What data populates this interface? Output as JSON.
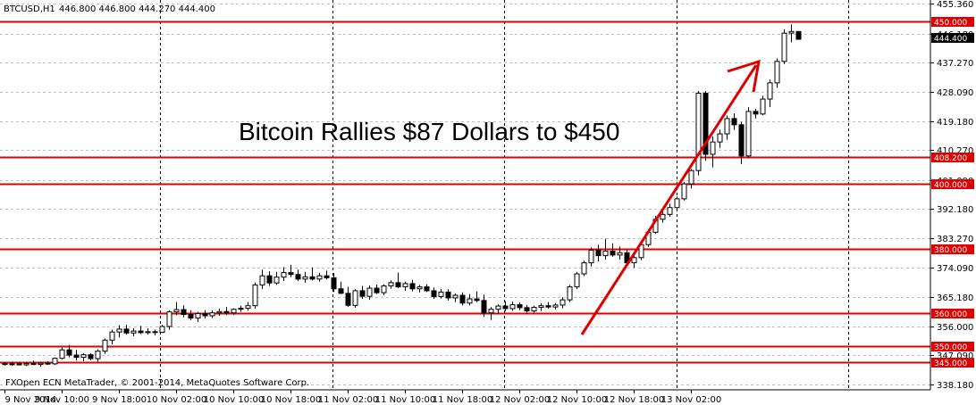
{
  "header": {
    "symbol": "BTCUSD,H1",
    "ohlc": "446.800 446.800 444.270 444.400"
  },
  "headline": "Bitcoin Rallies $87 Dollars to $450",
  "footer": "FXOpen ECN MetaTrader, © 2001-2014, MetaQuotes Software Corp.",
  "colors": {
    "level_line": "#e00000",
    "arrow": "#e00000",
    "candle_up": "#ffffff",
    "candle_down": "#000000",
    "current_price_tag": "#000000"
  },
  "chart_data": {
    "type": "candlestick",
    "y_ticks": [
      "455.360",
      "446.180",
      "437.270",
      "428.090",
      "419.180",
      "410.270",
      "401.090",
      "392.180",
      "383.270",
      "374.090",
      "365.180",
      "356.000",
      "347.090",
      "338.180"
    ],
    "x_ticks": [
      "9 Nov 2014",
      "9 Nov 10:00",
      "9 Nov 18:00",
      "10 Nov 02:00",
      "10 Nov 10:00",
      "10 Nov 18:00",
      "11 Nov 02:00",
      "11 Nov 10:00",
      "11 Nov 18:00",
      "12 Nov 02:00",
      "12 Nov 10:00",
      "12 Nov 18:00",
      "13 Nov 02:00"
    ],
    "ylim": [
      336.5,
      456.5
    ],
    "grid": true,
    "current_price": "444.400",
    "levels": [
      {
        "label": "450.000",
        "value": 450.0
      },
      {
        "label": "408.200",
        "value": 408.2
      },
      {
        "label": "400.000",
        "value": 400.0
      },
      {
        "label": "380.000",
        "value": 380.0
      },
      {
        "label": "360.000",
        "value": 360.0
      },
      {
        "label": "350.000",
        "value": 350.0
      },
      {
        "label": "345.000",
        "value": 345.0
      }
    ],
    "candles": [
      [
        344.6,
        345.0,
        344.0,
        344.3
      ],
      [
        344.3,
        345.2,
        343.9,
        344.5
      ],
      [
        344.5,
        345.0,
        344.0,
        344.2
      ],
      [
        344.2,
        344.9,
        343.8,
        344.6
      ],
      [
        344.6,
        345.5,
        344.1,
        344.3
      ],
      [
        344.3,
        345.1,
        343.6,
        344.7
      ],
      [
        344.7,
        345.3,
        344.2,
        344.5
      ],
      [
        344.5,
        346.5,
        344.2,
        346.2
      ],
      [
        346.2,
        349.5,
        345.8,
        348.8
      ],
      [
        348.8,
        350.3,
        346.5,
        347.2
      ],
      [
        347.2,
        348.8,
        345.6,
        346.5
      ],
      [
        346.5,
        347.8,
        345.3,
        347.3
      ],
      [
        347.3,
        347.8,
        345.6,
        346.1
      ],
      [
        346.1,
        349.0,
        345.2,
        348.4
      ],
      [
        348.4,
        352.3,
        347.6,
        351.8
      ],
      [
        351.8,
        355.0,
        350.5,
        354.3
      ],
      [
        354.3,
        356.4,
        352.6,
        355.2
      ],
      [
        355.2,
        356.5,
        353.5,
        354.0
      ],
      [
        354.0,
        355.5,
        353.0,
        354.6
      ],
      [
        354.6,
        356.2,
        353.7,
        354.1
      ],
      [
        354.1,
        355.4,
        353.5,
        354.4
      ],
      [
        354.4,
        355.0,
        353.3,
        354.2
      ],
      [
        354.2,
        356.5,
        354.0,
        356.0
      ],
      [
        356.0,
        361.0,
        355.0,
        360.5
      ],
      [
        360.5,
        363.5,
        359.5,
        361.2
      ],
      [
        361.2,
        362.5,
        358.8,
        359.7
      ],
      [
        359.7,
        361.0,
        358.0,
        358.6
      ],
      [
        358.6,
        360.5,
        357.4,
        360.0
      ],
      [
        360.0,
        361.0,
        358.5,
        359.3
      ],
      [
        359.3,
        361.0,
        358.6,
        360.2
      ],
      [
        360.2,
        361.5,
        359.3,
        360.6
      ],
      [
        360.6,
        362.0,
        359.6,
        360.2
      ],
      [
        360.2,
        361.6,
        359.6,
        361.3
      ],
      [
        361.3,
        362.4,
        360.5,
        361.6
      ],
      [
        361.6,
        363.5,
        360.8,
        362.4
      ],
      [
        362.4,
        369.6,
        361.5,
        368.8
      ],
      [
        368.8,
        373.5,
        367.5,
        371.6
      ],
      [
        371.6,
        373.0,
        368.5,
        369.4
      ],
      [
        369.4,
        372.8,
        368.8,
        371.2
      ],
      [
        371.2,
        374.3,
        370.0,
        372.6
      ],
      [
        372.6,
        375.0,
        371.2,
        372.0
      ],
      [
        372.0,
        373.5,
        370.0,
        370.6
      ],
      [
        370.6,
        372.8,
        369.5,
        371.3
      ],
      [
        371.3,
        374.2,
        370.2,
        370.6
      ],
      [
        370.6,
        372.5,
        369.8,
        371.6
      ],
      [
        371.6,
        373.2,
        370.5,
        371.0
      ],
      [
        371.0,
        372.5,
        366.6,
        367.6
      ],
      [
        367.6,
        369.8,
        366.0,
        366.2
      ],
      [
        366.2,
        368.2,
        362.0,
        362.5
      ],
      [
        362.5,
        367.5,
        361.8,
        367.0
      ],
      [
        367.0,
        368.5,
        364.5,
        365.3
      ],
      [
        365.3,
        368.6,
        364.2,
        367.8
      ],
      [
        367.8,
        368.9,
        366.0,
        366.4
      ],
      [
        366.4,
        369.0,
        365.6,
        368.5
      ],
      [
        368.5,
        370.2,
        367.6,
        369.5
      ],
      [
        369.5,
        372.6,
        367.8,
        368.2
      ],
      [
        368.2,
        369.8,
        367.0,
        369.2
      ],
      [
        369.2,
        370.3,
        366.8,
        367.6
      ],
      [
        367.6,
        368.8,
        366.5,
        368.2
      ],
      [
        368.2,
        369.0,
        366.6,
        367.0
      ],
      [
        367.0,
        368.0,
        364.5,
        365.2
      ],
      [
        365.2,
        367.5,
        364.6,
        366.6
      ],
      [
        366.6,
        367.5,
        364.0,
        364.8
      ],
      [
        364.8,
        366.2,
        363.5,
        365.6
      ],
      [
        365.6,
        366.5,
        362.5,
        363.2
      ],
      [
        363.2,
        366.0,
        362.5,
        364.5
      ],
      [
        364.5,
        366.8,
        363.5,
        364.0
      ],
      [
        364.0,
        365.8,
        359.0,
        360.2
      ],
      [
        360.2,
        362.0,
        358.0,
        361.3
      ],
      [
        361.3,
        362.8,
        359.8,
        362.3
      ],
      [
        362.3,
        363.8,
        360.7,
        361.5
      ],
      [
        361.5,
        363.6,
        360.8,
        362.7
      ],
      [
        362.7,
        363.4,
        361.0,
        361.8
      ],
      [
        361.8,
        362.6,
        360.0,
        360.8
      ],
      [
        360.8,
        362.4,
        360.2,
        361.9
      ],
      [
        361.9,
        363.2,
        360.8,
        362.4
      ],
      [
        362.4,
        363.5,
        361.5,
        362.0
      ],
      [
        362.0,
        363.2,
        361.2,
        362.6
      ],
      [
        362.6,
        365.0,
        361.6,
        364.2
      ],
      [
        364.2,
        368.8,
        363.5,
        368.2
      ],
      [
        368.2,
        372.8,
        367.5,
        372.2
      ],
      [
        372.2,
        376.2,
        371.5,
        375.6
      ],
      [
        375.6,
        380.3,
        374.5,
        379.5
      ],
      [
        379.5,
        381.2,
        376.0,
        377.8
      ],
      [
        377.8,
        383.0,
        376.6,
        379.2
      ],
      [
        379.2,
        381.6,
        377.5,
        378.0
      ],
      [
        378.0,
        380.6,
        376.6,
        378.7
      ],
      [
        378.7,
        379.5,
        374.6,
        375.6
      ],
      [
        375.6,
        378.6,
        374.1,
        377.2
      ],
      [
        377.2,
        382.0,
        376.4,
        381.2
      ],
      [
        381.2,
        386.0,
        380.5,
        385.0
      ],
      [
        385.0,
        390.0,
        384.5,
        389.0
      ],
      [
        389.0,
        392.0,
        388.0,
        390.5
      ],
      [
        390.5,
        393.8,
        389.8,
        392.6
      ],
      [
        392.6,
        396.0,
        392.0,
        395.3
      ],
      [
        395.3,
        400.5,
        394.8,
        399.9
      ],
      [
        399.9,
        404.5,
        398.5,
        404.0
      ],
      [
        404.0,
        428.5,
        402.5,
        427.8
      ],
      [
        427.8,
        428.5,
        407.0,
        409.0
      ],
      [
        409.0,
        414.5,
        405.0,
        412.8
      ],
      [
        412.8,
        416.6,
        411.0,
        415.3
      ],
      [
        415.3,
        421.0,
        413.5,
        420.0
      ],
      [
        420.0,
        421.6,
        416.5,
        418.1
      ],
      [
        418.1,
        419.0,
        406.0,
        408.5
      ],
      [
        408.5,
        423.5,
        408.0,
        422.2
      ],
      [
        422.2,
        423.0,
        420.0,
        421.4
      ],
      [
        421.4,
        427.0,
        421.0,
        426.0
      ],
      [
        426.0,
        432.0,
        423.5,
        431.0
      ],
      [
        431.0,
        438.5,
        429.5,
        437.6
      ],
      [
        437.6,
        447.5,
        436.8,
        446.3
      ],
      [
        446.3,
        449.0,
        443.5,
        446.8
      ],
      [
        446.8,
        446.8,
        444.27,
        444.4
      ]
    ]
  }
}
